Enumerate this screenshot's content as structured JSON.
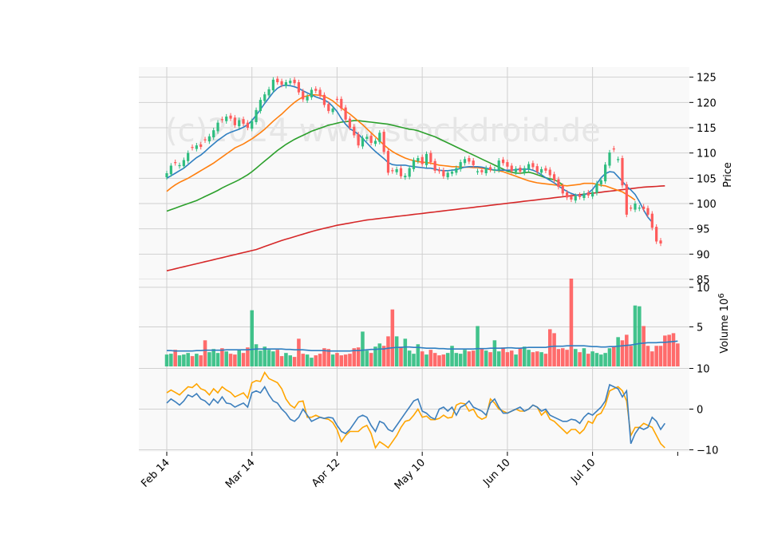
{
  "watermark": "(c)2024 www.stockdroid.de",
  "colors": {
    "up": "#2ebd7f",
    "down": "#ff5b5b",
    "grid": "#d0d0d0",
    "panel_bg": "#f9f9f9",
    "sma10": "#2f7fc1",
    "sma20": "#ff7f0e",
    "sma50": "#2ca02c",
    "sma200": "#d62728",
    "osc_fast": "#3d7fbd",
    "osc_slow": "#ffa500"
  },
  "chart_data": [
    {
      "type": "candlestick",
      "panel": "price",
      "ylabel": "Price",
      "ylim": [
        85,
        127
      ],
      "y_ticks": [
        85,
        90,
        95,
        100,
        105,
        110,
        115,
        120,
        125
      ],
      "x_ticks": [
        "Feb 14",
        "Mar 14",
        "Apr 12",
        "May 10",
        "Jun 10",
        "Jul 10"
      ],
      "x_tick_index": [
        0,
        20,
        40,
        60,
        80,
        100
      ],
      "grid": true,
      "close": [
        106,
        107.5,
        108,
        107.6,
        108.6,
        110,
        111,
        111.5,
        111.2,
        112.5,
        113.3,
        114.5,
        116,
        116.5,
        117.2,
        116.8,
        115.5,
        116.5,
        115.8,
        115,
        116.3,
        118.5,
        120.5,
        121.6,
        122.6,
        124.5,
        124,
        123.5,
        124,
        124.3,
        123.8,
        122,
        120.6,
        121.2,
        122.5,
        122.3,
        121.3,
        119.5,
        118.3,
        118.8,
        120.5,
        118.8,
        116.6,
        115,
        113.5,
        111.5,
        113,
        113.2,
        112,
        112.4,
        114,
        110.2,
        106.1,
        106.4,
        106.8,
        105.4,
        105.5,
        107,
        108.6,
        109,
        107.8,
        109.8,
        108.2,
        106.5,
        106.4,
        105.4,
        106.1,
        106.3,
        107,
        108.2,
        108.8,
        108.3,
        107.6,
        106.4,
        106.2,
        107,
        106.7,
        106.8,
        108.5,
        108,
        107.3,
        106.4,
        106.9,
        106.3,
        107,
        107.8,
        107.2,
        106.3,
        106.8,
        106.5,
        105.6,
        104.6,
        103.3,
        102,
        101.2,
        100.8,
        101.5,
        101.3,
        102,
        101.6,
        102.3,
        104,
        104.6,
        107.7,
        110.1,
        110.7,
        108.8,
        103.6,
        97.8,
        99,
        100,
        99.2,
        98.9,
        97.8,
        95.2,
        92.5,
        92.1
      ],
      "sma10": [
        105,
        105.5,
        106,
        106.5,
        107,
        107.7,
        108.4,
        109.1,
        109.6,
        110.3,
        111.1,
        111.8,
        112.5,
        113.1,
        113.7,
        114.1,
        114.4,
        114.7,
        115.1,
        115.6,
        116.4,
        117.5,
        118.6,
        119.8,
        120.9,
        122,
        122.8,
        123.3,
        123.4,
        123.3,
        123.1,
        122.8,
        122.3,
        121.9,
        121.5,
        121.1,
        120.8,
        120.5,
        120,
        119.2,
        118.2,
        116.8,
        115.7,
        114.8,
        114.3,
        113.7,
        112.9,
        112,
        111.1,
        110.3,
        109.6,
        108.9,
        108.1,
        107.7,
        107.6,
        107.6,
        107.6,
        107.4,
        107.3,
        107.2,
        107.1,
        107,
        107,
        106.8,
        106.6,
        106.5,
        106.5,
        106.6,
        106.7,
        107,
        107.2,
        107.3,
        107.3,
        107.3,
        107.2,
        107,
        106.8,
        106.6,
        106.6,
        106.6,
        106.6,
        106.6,
        106.7,
        106.8,
        106.8,
        106.8,
        106.6,
        106.2,
        105.7,
        105.1,
        104.6,
        104.1,
        103.5,
        102.9,
        102.4,
        102,
        101.7,
        101.6,
        101.7,
        102.1,
        102.8,
        103.9,
        105.1,
        105.9,
        106.3,
        106.2,
        105.3,
        104.4,
        103.4,
        102.7,
        101.8,
        100.4,
        98.7,
        97.3,
        96.3
      ],
      "sma20": [
        102.4,
        103.1,
        103.7,
        104.2,
        104.6,
        105,
        105.5,
        106,
        106.5,
        107,
        107.5,
        108,
        108.6,
        109.2,
        109.8,
        110.4,
        111,
        111.4,
        111.8,
        112.3,
        112.8,
        113.4,
        114,
        114.7,
        115.5,
        116.3,
        117,
        117.7,
        118.5,
        119.3,
        120,
        120.6,
        121.1,
        121.3,
        121.5,
        121.5,
        121.4,
        121.2,
        120.8,
        120.3,
        119.6,
        118.9,
        118.3,
        117.7,
        117,
        116.3,
        115.6,
        114.8,
        114,
        113.2,
        112.4,
        111.6,
        110.9,
        110.3,
        109.8,
        109.4,
        109,
        108.7,
        108.5,
        108.3,
        108.2,
        108.1,
        108,
        107.8,
        107.6,
        107.5,
        107.4,
        107.3,
        107.3,
        107.2,
        107.2,
        107.2,
        107.1,
        107.1,
        107,
        106.9,
        106.7,
        106.6,
        106.5,
        106.3,
        106,
        105.7,
        105.4,
        105.1,
        104.8,
        104.5,
        104.3,
        104.1,
        104,
        103.9,
        103.8,
        103.7,
        103.6,
        103.6,
        103.5,
        103.6,
        103.7,
        103.8,
        104,
        104,
        104,
        103.8,
        103.6,
        103.5,
        103.2,
        102.9,
        102.6,
        102.3,
        101.8,
        101.3,
        100.7
      ],
      "sma50": [
        98.5,
        98.8,
        99.1,
        99.4,
        99.7,
        100,
        100.3,
        100.6,
        101,
        101.4,
        101.8,
        102.2,
        102.6,
        103.1,
        103.5,
        103.9,
        104.3,
        104.7,
        105.2,
        105.7,
        106.3,
        107,
        107.7,
        108.4,
        109.1,
        109.8,
        110.5,
        111.1,
        111.7,
        112.2,
        112.7,
        113.1,
        113.5,
        113.9,
        114.3,
        114.6,
        114.9,
        115.2,
        115.5,
        115.7,
        115.9,
        116.1,
        116.2,
        116.3,
        116.4,
        116.4,
        116.3,
        116.2,
        116.1,
        116,
        115.9,
        115.8,
        115.7,
        115.5,
        115.3,
        115.1,
        114.9,
        114.7,
        114.6,
        114.4,
        114.1,
        113.8,
        113.5,
        113.2,
        112.8,
        112.4,
        112,
        111.6,
        111.2,
        110.8,
        110.4,
        110,
        109.6,
        109.2,
        108.8,
        108.4,
        108,
        107.6,
        107.2,
        106.8,
        106.4,
        106.2,
        106,
        106,
        106.1,
        106.2,
        106,
        105.7,
        105.4,
        105.1,
        104.9,
        104.7,
        104.3,
        103.7
      ],
      "sma200": [
        86.7,
        86.9,
        87.1,
        87.3,
        87.5,
        87.7,
        87.9,
        88.1,
        88.3,
        88.5,
        88.7,
        88.9,
        89.1,
        89.3,
        89.5,
        89.7,
        89.9,
        90.1,
        90.3,
        90.5,
        90.7,
        90.9,
        91.2,
        91.5,
        91.8,
        92.1,
        92.4,
        92.7,
        92.95,
        93.2,
        93.45,
        93.7,
        93.95,
        94.2,
        94.45,
        94.7,
        94.9,
        95.1,
        95.3,
        95.5,
        95.7,
        95.85,
        96,
        96.15,
        96.3,
        96.45,
        96.6,
        96.75,
        96.85,
        96.95,
        97.05,
        97.15,
        97.25,
        97.35,
        97.45,
        97.55,
        97.65,
        97.75,
        97.85,
        97.95,
        98.05,
        98.15,
        98.25,
        98.35,
        98.45,
        98.55,
        98.65,
        98.75,
        98.85,
        98.95,
        99.05,
        99.15,
        99.25,
        99.35,
        99.45,
        99.55,
        99.65,
        99.75,
        99.85,
        99.95,
        100.05,
        100.15,
        100.25,
        100.35,
        100.45,
        100.55,
        100.65,
        100.75,
        100.85,
        100.95,
        101.05,
        101.15,
        101.25,
        101.35,
        101.45,
        101.55,
        101.65,
        101.75,
        101.85,
        101.95,
        102.05,
        102.15,
        102.25,
        102.35,
        102.45,
        102.55,
        102.65,
        102.75,
        102.85,
        102.95,
        103.05,
        103.15,
        103.25,
        103.3,
        103.35,
        103.4,
        103.45,
        103.5
      ]
    },
    {
      "type": "bar",
      "panel": "volume",
      "ylabel": "Volume  10^6",
      "ylim": [
        0,
        11
      ],
      "y_ticks": [
        5,
        10
      ],
      "volume": [
        1.5,
        1.6,
        2.1,
        1.4,
        1.5,
        1.7,
        1.3,
        1.6,
        1.4,
        3.3,
        1.8,
        2.2,
        1.7,
        2.3,
        1.9,
        1.6,
        1.5,
        2.1,
        1.7,
        2.4,
        7.1,
        2.8,
        2,
        2.5,
        2.1,
        1.9,
        2.1,
        1.3,
        1.7,
        1.4,
        1.2,
        3.5,
        1.6,
        1.5,
        1.1,
        1.4,
        1.6,
        2.3,
        2.2,
        1.5,
        1.7,
        1.4,
        1.5,
        1.6,
        2.3,
        2.4,
        4.4,
        2,
        1.7,
        2.5,
        2.9,
        2.6,
        3.8,
        7.2,
        3.8,
        2.5,
        3.5,
        2,
        1.6,
        2.8,
        1.9,
        1.5,
        2.1,
        1.7,
        1.4,
        1.5,
        1.7,
        2.6,
        1.7,
        1.6,
        2.1,
        1.9,
        2,
        5.1,
        2.2,
        2,
        1.8,
        3.3,
        1.9,
        2.4,
        1.8,
        2,
        1.5,
        2.3,
        2.5,
        2.1,
        1.8,
        1.9,
        1.8,
        1.6,
        4.7,
        4.2,
        2.2,
        2.3,
        2.1,
        11.1,
        2.2,
        1.8,
        2.3,
        1.6,
        1.9,
        1.7,
        1.5,
        1.7,
        2.3,
        2.5,
        3.7,
        3.3,
        4,
        2.6,
        7.7,
        7.6,
        5.1,
        2.6,
        1.9,
        2.6,
        2.6,
        3.9,
        4,
        4.2,
        2.9
      ],
      "volume_sma": [
        2,
        2,
        1.95,
        1.95,
        1.95,
        1.95,
        1.95,
        2,
        2,
        2.05,
        2.05,
        2.05,
        2.05,
        2.05,
        2.1,
        2.1,
        2.1,
        2.1,
        2.1,
        2.1,
        2.15,
        2.2,
        2.2,
        2.2,
        2.2,
        2.2,
        2.2,
        2.2,
        2.15,
        2.15,
        2.1,
        2.1,
        2.1,
        2.05,
        2,
        2,
        2,
        2,
        1.95,
        1.95,
        1.95,
        1.95,
        1.95,
        1.95,
        2,
        2,
        2.05,
        2.1,
        2.15,
        2.15,
        2.2,
        2.2,
        2.3,
        2.35,
        2.4,
        2.4,
        2.45,
        2.45,
        2.4,
        2.4,
        2.35,
        2.3,
        2.3,
        2.3,
        2.25,
        2.25,
        2.2,
        2.2,
        2.2,
        2.2,
        2.2,
        2.2,
        2.2,
        2.25,
        2.25,
        2.25,
        2.3,
        2.3,
        2.3,
        2.3,
        2.35,
        2.35,
        2.3,
        2.3,
        2.35,
        2.4,
        2.4,
        2.4,
        2.4,
        2.4,
        2.5,
        2.55,
        2.55,
        2.55,
        2.6,
        2.6,
        2.6,
        2.6,
        2.6,
        2.55,
        2.5,
        2.5,
        2.45,
        2.45,
        2.5,
        2.5,
        2.55,
        2.6,
        2.65,
        2.7,
        2.8,
        2.9,
        2.95,
        3,
        3,
        3,
        3.05,
        3.05,
        3.1,
        3.15,
        3.2
      ],
      "up_down": [
        1,
        1,
        0,
        1,
        1,
        1,
        0,
        1,
        0,
        0,
        1,
        1,
        1,
        0,
        1,
        0,
        0,
        1,
        0,
        0,
        1,
        1,
        1,
        1,
        1,
        1,
        0,
        0,
        1,
        1,
        0,
        0,
        0,
        1,
        1,
        0,
        0,
        0,
        0,
        1,
        0,
        0,
        0,
        0,
        0,
        0,
        1,
        1,
        0,
        1,
        1,
        0,
        0,
        0,
        1,
        0,
        1,
        1,
        1,
        1,
        0,
        1,
        0,
        0,
        0,
        0,
        1,
        1,
        1,
        1,
        1,
        0,
        0,
        1,
        0,
        1,
        0,
        1,
        1,
        0,
        0,
        0,
        1,
        0,
        1,
        1,
        0,
        0,
        1,
        0,
        0,
        0,
        0,
        0,
        0,
        0,
        1,
        0,
        1,
        0,
        1,
        1,
        1,
        1,
        1,
        0,
        1,
        0,
        0,
        0,
        1,
        1,
        0,
        0,
        0,
        0,
        0,
        0,
        0
      ]
    },
    {
      "type": "line",
      "panel": "oscillator",
      "ylim": [
        -10.5,
        10.5
      ],
      "y_ticks": [
        -10,
        0,
        10
      ],
      "fast": [
        1.5,
        2.5,
        1.8,
        1,
        2,
        3.5,
        3,
        3.8,
        2.5,
        2,
        1,
        2.5,
        1.5,
        3,
        1.5,
        1.3,
        0.5,
        1,
        1.5,
        0.5,
        4,
        4.5,
        4,
        5.5,
        3.5,
        2,
        1.5,
        0,
        -1,
        -2.5,
        -3,
        -2,
        0,
        -1.5,
        -3,
        -2.5,
        -2,
        -2.3,
        -2,
        -2.2,
        -4,
        -5.5,
        -6,
        -5,
        -3.5,
        -2,
        -1.5,
        -2,
        -4,
        -5.5,
        -3,
        -3.5,
        -5,
        -5.5,
        -4,
        -2.5,
        -1,
        0.5,
        2,
        2.5,
        -0.5,
        -1,
        -2,
        -2.5,
        0,
        0.5,
        -0.5,
        0.5,
        -1.5,
        0.5,
        1,
        2,
        0.5,
        0,
        -0.5,
        -1.5,
        1.5,
        2.5,
        0.5,
        -1,
        -1,
        -0.5,
        0,
        0.5,
        -0.5,
        0,
        1,
        0.5,
        -0.5,
        0,
        -1.5,
        -2,
        -2.5,
        -3,
        -3,
        -2.5,
        -2.7,
        -3.5,
        -2,
        -1,
        -1.5,
        -0.5,
        0.5,
        2,
        6,
        5.5,
        5,
        3,
        4.5,
        -8.5,
        -6,
        -4.5,
        -5,
        -4.5,
        -2,
        -3,
        -5,
        -3.5
      ],
      "slow": [
        4,
        4.7,
        4.1,
        3.5,
        4.5,
        5.5,
        5.3,
        6.2,
        5,
        4.6,
        3.5,
        5,
        4,
        5.5,
        4.7,
        4.1,
        3,
        3.5,
        4,
        2.7,
        6.5,
        7,
        6.8,
        9,
        7.5,
        7,
        6.5,
        5,
        2.5,
        1,
        0.3,
        1.8,
        2,
        -2,
        -2,
        -1.5,
        -2,
        -2.3,
        -2.5,
        -3.3,
        -5,
        -8,
        -6.5,
        -5.5,
        -5.5,
        -5.5,
        -4.5,
        -4,
        -6,
        -9.5,
        -8,
        -8.7,
        -9.5,
        -8,
        -6.5,
        -4.5,
        -3,
        -2.7,
        -1.5,
        0,
        -2,
        -1.7,
        -2.6,
        -2.6,
        -2.3,
        -1.5,
        -2.2,
        -2,
        1,
        1.5,
        1.3,
        -0.5,
        0,
        -1.8,
        -2.5,
        -2,
        2.5,
        1.5,
        0,
        -0.5,
        -1,
        -0.5,
        0,
        -0.5,
        -0.5,
        0,
        1,
        0.5,
        -1.5,
        -0.5,
        -2.5,
        -3,
        -4,
        -5,
        -6,
        -5,
        -5,
        -6,
        -5,
        -3,
        -3.5,
        -1.5,
        -1,
        1,
        4.5,
        5,
        5.5,
        4.5,
        2,
        -6.5,
        -4.5,
        -4.5,
        -3.5,
        -4,
        -4.5,
        -6.5,
        -8.5,
        -9.5
      ]
    }
  ]
}
